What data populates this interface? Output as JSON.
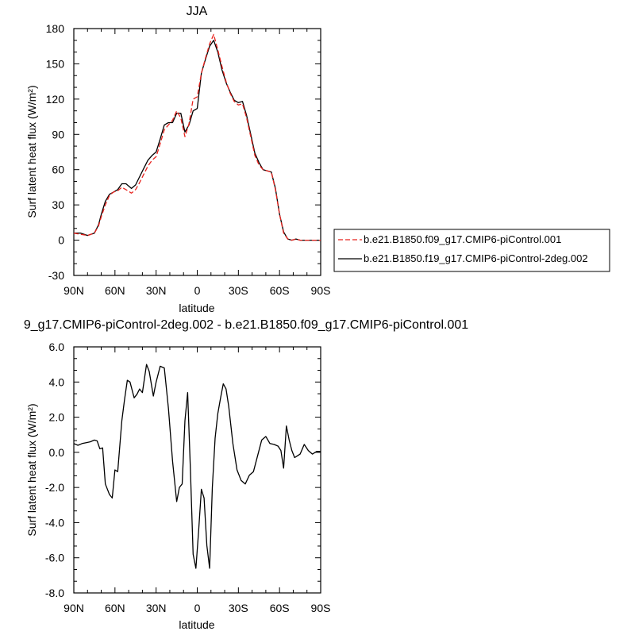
{
  "chart_data": [
    {
      "type": "line",
      "title": "JJA",
      "xlabel": "latitude",
      "ylabel": "Surf latent heat flux (W/m²)",
      "ylim": [
        -30,
        180
      ],
      "yticks": [
        "-30",
        "0",
        "30",
        "60",
        "90",
        "120",
        "150",
        "180"
      ],
      "ytick_values": [
        -30,
        0,
        30,
        60,
        90,
        120,
        150,
        180
      ],
      "xlim": [
        90,
        -90
      ],
      "xticks": [
        "90N",
        "60N",
        "30N",
        "0",
        "30S",
        "60S",
        "90S"
      ],
      "xtick_values": [
        90,
        60,
        30,
        0,
        -30,
        -60,
        -90
      ],
      "legend_position": "right",
      "x": [
        90,
        85,
        80,
        75,
        72,
        70,
        67,
        64,
        61,
        58,
        55,
        52,
        48,
        45,
        42,
        39,
        36,
        33,
        30,
        27,
        24,
        21,
        18,
        15,
        12,
        9,
        6,
        3,
        0,
        -3,
        -6,
        -9,
        -12,
        -15,
        -18,
        -21,
        -24,
        -27,
        -30,
        -33,
        -36,
        -39,
        -42,
        -45,
        -48,
        -51,
        -54,
        -57,
        -60,
        -63,
        -66,
        -69,
        -72,
        -75,
        -78,
        -81,
        -84,
        -87,
        -90
      ],
      "series": [
        {
          "name": "b.e21.B1850.f09_g17.CMIP6-piControl.001",
          "color": "#e8231e",
          "dash": "dashed",
          "values": [
            6,
            5,
            4,
            6,
            12,
            20,
            30,
            38,
            41,
            42,
            45,
            43,
            40,
            43,
            49,
            56,
            63,
            68,
            71,
            82,
            94,
            98,
            102,
            110,
            104,
            88,
            99,
            120,
            122,
            142,
            155,
            167,
            175,
            162,
            148,
            135,
            125,
            118,
            115,
            116,
            104,
            88,
            72,
            64,
            60,
            59,
            58,
            43,
            22,
            6,
            1,
            0,
            1,
            0,
            0,
            0,
            0,
            0,
            0
          ]
        },
        {
          "name": "b.e21.B1850.f19_g17.CMIP6-piControl-2deg.002",
          "color": "#000000",
          "dash": "solid",
          "values": [
            6,
            6,
            4,
            6,
            13,
            22,
            33,
            39,
            41,
            43,
            48,
            48,
            44,
            47,
            54,
            61,
            68,
            72,
            75,
            86,
            98,
            100,
            100,
            108,
            108,
            92,
            98,
            110,
            112,
            142,
            154,
            165,
            170,
            160,
            145,
            134,
            126,
            119,
            117,
            118,
            106,
            90,
            74,
            66,
            60,
            59,
            58,
            44,
            22,
            7,
            1,
            0,
            1,
            0,
            0,
            0,
            0,
            0,
            0
          ]
        }
      ]
    },
    {
      "type": "line",
      "title": "9_g17.CMIP6-piControl-2deg.002 - b.e21.B1850.f09_g17.CMIP6-piControl.001",
      "xlabel": "latitude",
      "ylabel": "Surf latent heat flux (W/m²)",
      "ylim": [
        -8,
        6
      ],
      "yticks": [
        "-8.0",
        "-6.0",
        "-4.0",
        "-2.0",
        "0.0",
        "2.0",
        "4.0",
        "6.0"
      ],
      "ytick_values": [
        -8,
        -6,
        -4,
        -2,
        0,
        2,
        4,
        6
      ],
      "xlim": [
        90,
        -90
      ],
      "xticks": [
        "90N",
        "60N",
        "30N",
        "0",
        "30S",
        "60S",
        "90S"
      ],
      "xtick_values": [
        90,
        60,
        30,
        0,
        -30,
        -60,
        -90
      ],
      "x": [
        90,
        87,
        84,
        81,
        78,
        75,
        73,
        71,
        69,
        67,
        64,
        62,
        60,
        58,
        55,
        53,
        51,
        49,
        46,
        44,
        42,
        40,
        37,
        35,
        32,
        30,
        27,
        24,
        21,
        18,
        15,
        13,
        11,
        9,
        7,
        5,
        3,
        1,
        -1,
        -3,
        -5,
        -7,
        -9,
        -11,
        -13,
        -15,
        -17,
        -19,
        -21,
        -23,
        -26,
        -29,
        -32,
        -35,
        -38,
        -41,
        -44,
        -47,
        -50,
        -53,
        -56,
        -59,
        -61,
        -63,
        -65,
        -67,
        -69,
        -71,
        -73,
        -75,
        -78,
        -81,
        -84,
        -87,
        -90
      ],
      "series": [
        {
          "name": "",
          "color": "#000000",
          "values": [
            0.5,
            0.4,
            0.5,
            0.55,
            0.6,
            0.7,
            0.65,
            0.2,
            0.25,
            -1.8,
            -2.4,
            -2.6,
            -1.0,
            -1.1,
            1.8,
            3.0,
            4.1,
            4.0,
            3.1,
            3.3,
            3.6,
            3.4,
            5.0,
            4.6,
            3.2,
            4.0,
            4.9,
            4.8,
            2.5,
            -0.5,
            -2.8,
            -2.0,
            -1.8,
            1.8,
            3.4,
            -1.0,
            -5.8,
            -6.6,
            -4.5,
            -2.1,
            -2.6,
            -5.3,
            -6.6,
            -2.0,
            0.8,
            2.2,
            3.1,
            3.9,
            3.6,
            2.6,
            0.5,
            -1.0,
            -1.6,
            -1.8,
            -1.3,
            -1.1,
            -0.2,
            0.7,
            0.9,
            0.5,
            0.45,
            0.35,
            0.1,
            -0.9,
            1.5,
            0.7,
            0.1,
            -0.3,
            -0.2,
            -0.1,
            0.45,
            0.1,
            -0.1,
            0.05,
            0.05
          ]
        }
      ]
    }
  ]
}
